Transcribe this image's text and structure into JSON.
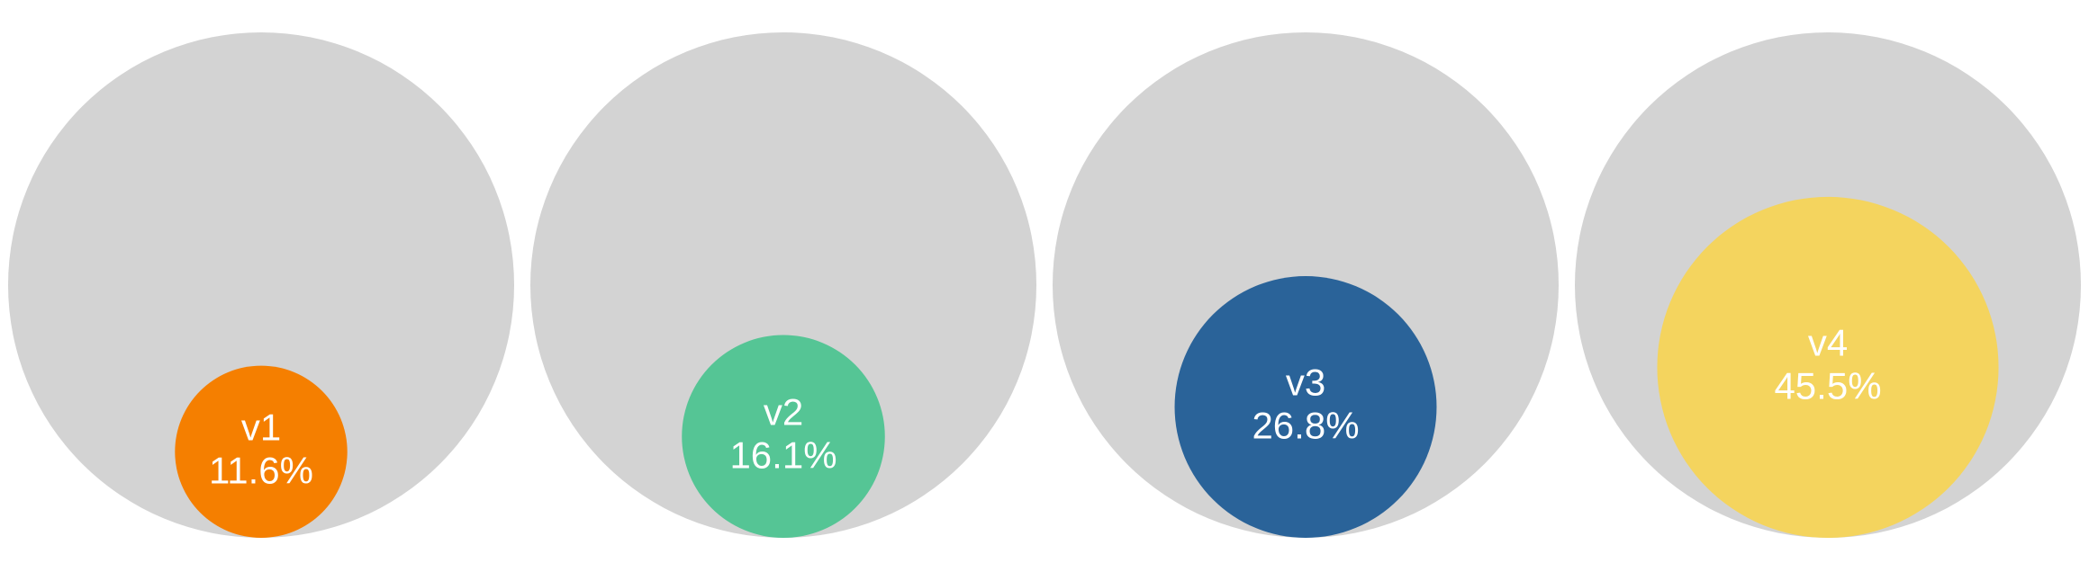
{
  "chart_data": {
    "type": "proportional-circle",
    "categories": [
      "v1",
      "v2",
      "v3",
      "v4"
    ],
    "values": [
      11.6,
      16.1,
      26.8,
      45.5
    ],
    "value_labels": [
      "11.6%",
      "16.1%",
      "26.8%",
      "45.5%"
    ],
    "colors": [
      "#f57f00",
      "#55c595",
      "#2a6399",
      "#f4d45e"
    ],
    "background_color": "#d3d3d3",
    "ylim": [
      0,
      100
    ]
  }
}
